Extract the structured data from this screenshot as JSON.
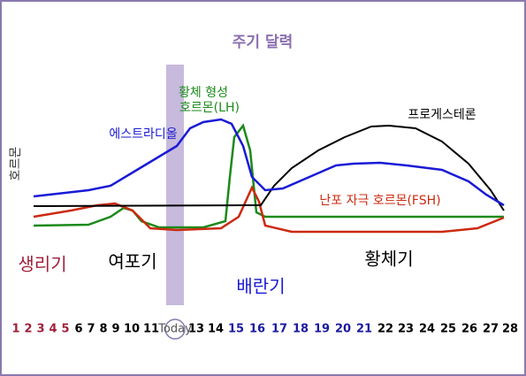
{
  "title": "주기 달력",
  "y_label": "호르몬",
  "curves": {
    "estradiol": "에스트라디올",
    "lh": [
      "황체 형성",
      "호르몬(LH)"
    ],
    "progesterone": "프로게스테론",
    "fsh": "난포 자극 호르몬(FSH)"
  },
  "phases": {
    "menstrual": "생리기",
    "follicular": "여포기",
    "ovulation": "배란기",
    "luteal": "황체기"
  },
  "days": [
    1,
    2,
    3,
    4,
    5,
    6,
    7,
    8,
    9,
    10,
    11,
    "Today",
    13,
    14,
    15,
    16,
    17,
    18,
    19,
    20,
    21,
    22,
    23,
    24,
    25,
    26,
    27,
    28
  ]
}
